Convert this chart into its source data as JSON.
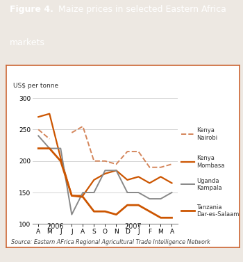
{
  "title_bold": "Figure 4.",
  "title_rest": " Maize prices in selected Eastern Africa\nmarkets",
  "header_bg": "#d4855a",
  "plot_bg": "#ffffff",
  "outer_bg": "#ede8e2",
  "border_color": "#cc6633",
  "ylabel": "US$ per tonne",
  "source": "Source: Eastern AFrica Regional Agricultural Trade Intelligence Network",
  "x_labels": [
    "A",
    "M",
    "J",
    "J",
    "A",
    "S",
    "O",
    "N",
    "D",
    "J",
    "F",
    "M",
    "A"
  ],
  "ylim": [
    100,
    310
  ],
  "yticks": [
    100,
    150,
    200,
    250,
    300
  ],
  "series": [
    {
      "name": "Kenya\nNairobi",
      "color": "#d4855a",
      "linestyle": "--",
      "linewidth": 1.4,
      "values": [
        250,
        235,
        null,
        245,
        255,
        200,
        200,
        195,
        215,
        215,
        190,
        190,
        195
      ]
    },
    {
      "name": "Kenya\nMombasa",
      "color": "#cc5500",
      "linestyle": "-",
      "linewidth": 1.6,
      "values": [
        270,
        275,
        205,
        145,
        145,
        170,
        180,
        185,
        170,
        175,
        165,
        175,
        165
      ]
    },
    {
      "name": "Uganda\nKampala",
      "color": "#888888",
      "linestyle": "-",
      "linewidth": 1.4,
      "values": [
        240,
        220,
        220,
        115,
        150,
        150,
        185,
        185,
        150,
        150,
        140,
        140,
        150
      ]
    },
    {
      "name": "Tanzania\nDar-es-Salaam",
      "color": "#cc5500",
      "linestyle": "-",
      "linewidth": 2.0,
      "values": [
        220,
        220,
        200,
        145,
        143,
        120,
        120,
        115,
        130,
        130,
        120,
        110,
        110
      ]
    }
  ]
}
